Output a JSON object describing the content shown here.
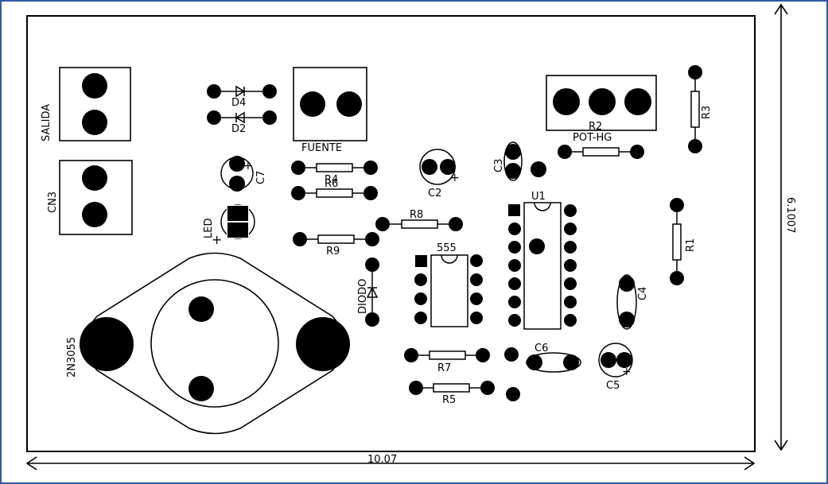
{
  "board": {
    "width_dimension": "10.07",
    "height_dimension": "6.1007",
    "colors": {
      "outer_frame": "#2f5aa8",
      "ink": "#000000",
      "background": "#ffffff"
    }
  },
  "labels": {
    "salida": "SALIDA",
    "cn3": "CN3",
    "d4": "D4",
    "d2": "D2",
    "c7": "C7",
    "led": "LED",
    "fuente": "FUENTE",
    "r4": "R4",
    "r6": "R6",
    "c2": "C2",
    "c3": "C3",
    "r8": "R8",
    "r9": "R9",
    "ic555": "555",
    "diodo": "DIODO",
    "transistor": "2N3055",
    "r7": "R7",
    "r5": "R5",
    "c6": "C6",
    "c5": "C5",
    "c4": "C4",
    "u1": "U1",
    "r2": "R2",
    "pot": "POT-HG",
    "r3": "R3",
    "r1": "R1",
    "plus": "+"
  }
}
